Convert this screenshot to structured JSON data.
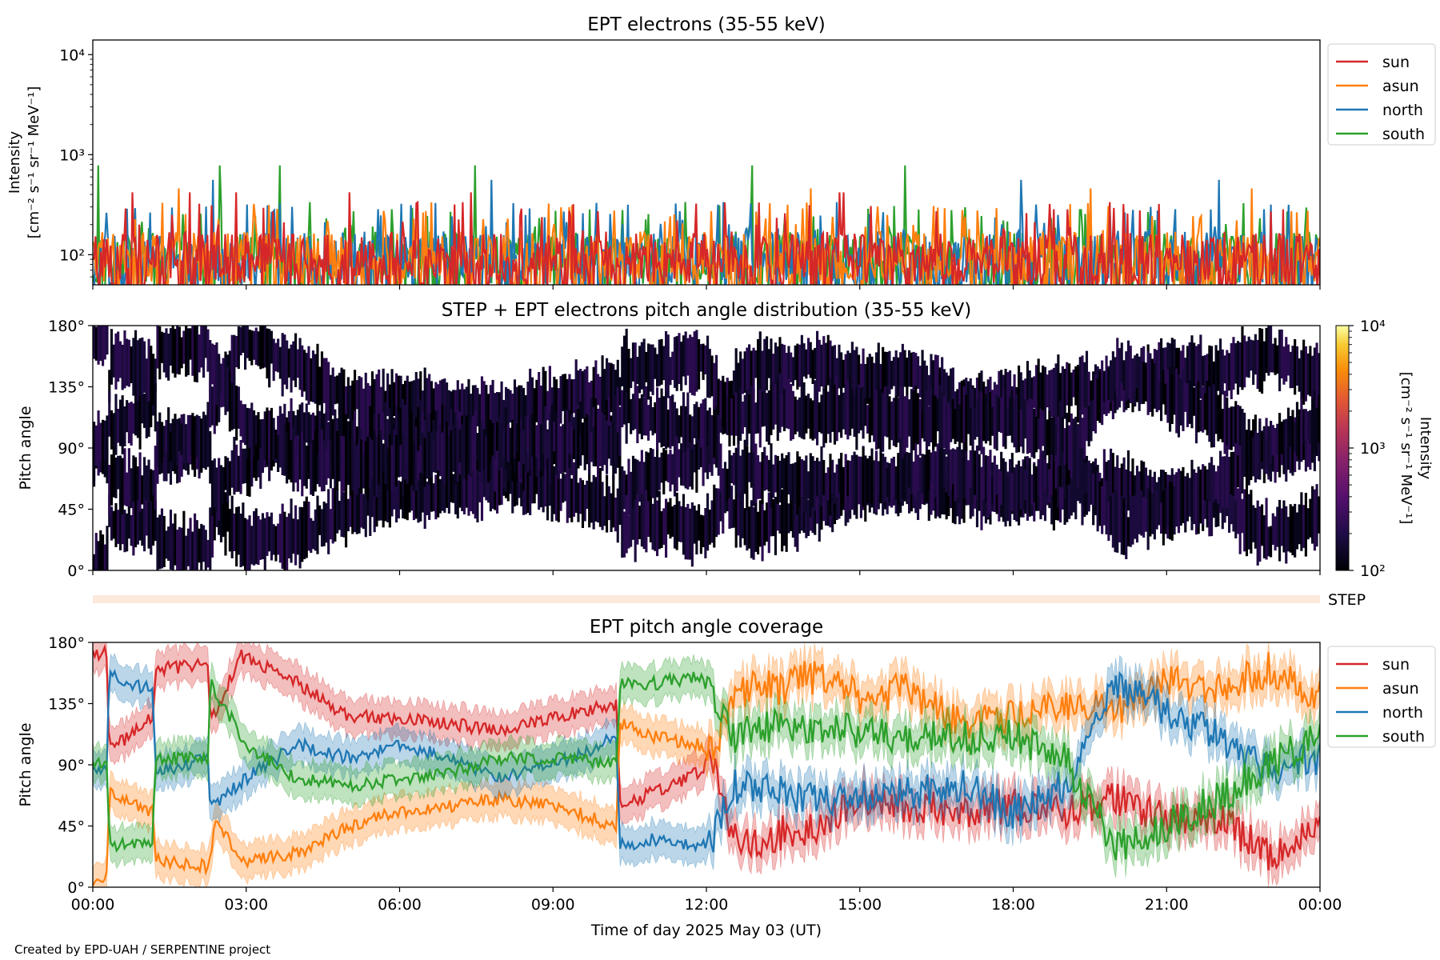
{
  "footer": "Created by EPD-UAH / SERPENTINE project",
  "colors": {
    "sun": "#d62728",
    "asun": "#ff7f0e",
    "north": "#1f77b4",
    "south": "#2ca02c"
  },
  "chart_data": [
    {
      "type": "line",
      "title": "EPT electrons (35-55 keV)",
      "ylabel_line1": "Intensity",
      "ylabel_line2": "[cm⁻² s⁻¹ sr⁻¹ MeV⁻¹]",
      "yscale": "log",
      "ylim": [
        50,
        14000
      ],
      "yticks": [
        {
          "label": "10²",
          "value": 100
        },
        {
          "label": "10³",
          "value": 1000
        },
        {
          "label": "10⁴",
          "value": 10000
        }
      ],
      "xlim_hours": [
        0,
        24
      ],
      "baseline": 75,
      "series": [
        {
          "name": "south",
          "color": "#2ca02c",
          "peak": 780,
          "seed": 4
        },
        {
          "name": "north",
          "color": "#1f77b4",
          "peak": 560,
          "seed": 3
        },
        {
          "name": "asun",
          "color": "#ff7f0e",
          "peak": 460,
          "seed": 2
        },
        {
          "name": "sun",
          "color": "#d62728",
          "peak": 420,
          "seed": 1
        }
      ],
      "legend": [
        "sun",
        "asun",
        "north",
        "south"
      ],
      "legend_position": "outside-right-top"
    },
    {
      "type": "heatmap",
      "title": "STEP + EPT electrons pitch angle distribution (35-55 keV)",
      "ylabel": "Pitch angle",
      "ylim": [
        0,
        180
      ],
      "yticks": [
        "0°",
        "45°",
        "90°",
        "135°",
        "180°"
      ],
      "yticks_values": [
        0,
        45,
        90,
        135,
        180
      ],
      "xlim_hours": [
        0,
        24
      ],
      "colorbar": {
        "scale": "log",
        "range": [
          100,
          10000
        ],
        "colormap": "inferno",
        "ticks": [
          {
            "label": "10²",
            "value": 100
          },
          {
            "label": "10³",
            "value": 1000
          },
          {
            "label": "10⁴",
            "value": 10000
          }
        ],
        "label_line1": "Intensity",
        "label_line2": "[cm⁻² s⁻¹ sr⁻¹ MeV⁻¹]"
      }
    },
    {
      "type": "bar",
      "title": "",
      "label": "STEP",
      "note": "thin STEP coverage strip"
    },
    {
      "type": "line",
      "title": "EPT pitch angle coverage",
      "ylabel": "Pitch angle",
      "xlabel": "Time of day 2025 May 03 (UT)",
      "ylim": [
        0,
        180
      ],
      "yticks": [
        "0°",
        "45°",
        "90°",
        "135°",
        "180°"
      ],
      "yticks_values": [
        0,
        45,
        90,
        135,
        180
      ],
      "xlim_hours": [
        0,
        24
      ],
      "xticks": [
        "00:00",
        "03:00",
        "06:00",
        "09:00",
        "12:00",
        "15:00",
        "18:00",
        "21:00",
        "00:00"
      ],
      "xticks_hours": [
        0,
        3,
        6,
        9,
        12,
        15,
        18,
        21,
        24
      ],
      "series": [
        {
          "name": "sun",
          "color": "#d62728",
          "knots": [
            [
              0,
              170
            ],
            [
              0.28,
              172
            ],
            [
              0.32,
              100
            ],
            [
              1.18,
              125
            ],
            [
              1.22,
              160
            ],
            [
              2.25,
              165
            ],
            [
              2.3,
              120
            ],
            [
              2.9,
              170
            ],
            [
              3.2,
              165
            ],
            [
              4,
              150
            ],
            [
              5,
              125
            ],
            [
              6,
              125
            ],
            [
              7,
              120
            ],
            [
              8,
              115
            ],
            [
              9,
              125
            ],
            [
              10.25,
              135
            ],
            [
              10.3,
              60
            ],
            [
              11,
              70
            ],
            [
              11.9,
              85
            ],
            [
              12.1,
              95
            ],
            [
              12.5,
              40
            ],
            [
              13,
              30
            ],
            [
              13.5,
              40
            ],
            [
              14,
              40
            ],
            [
              15,
              65
            ],
            [
              16,
              60
            ],
            [
              17,
              55
            ],
            [
              18,
              60
            ],
            [
              19,
              55
            ],
            [
              20,
              65
            ],
            [
              21,
              50
            ],
            [
              22,
              50
            ],
            [
              23,
              25
            ],
            [
              24,
              40
            ]
          ]
        },
        {
          "name": "asun",
          "color": "#ff7f0e",
          "knots": [
            [
              0,
              5
            ],
            [
              0.28,
              8
            ],
            [
              0.32,
              70
            ],
            [
              1.18,
              55
            ],
            [
              1.22,
              20
            ],
            [
              2.25,
              15
            ],
            [
              2.4,
              45
            ],
            [
              3,
              20
            ],
            [
              4,
              25
            ],
            [
              5,
              45
            ],
            [
              6,
              55
            ],
            [
              7,
              60
            ],
            [
              8,
              65
            ],
            [
              9,
              60
            ],
            [
              10.25,
              45
            ],
            [
              10.3,
              120
            ],
            [
              11,
              110
            ],
            [
              11.9,
              105
            ],
            [
              12.1,
              100
            ],
            [
              12.5,
              135
            ],
            [
              13,
              150
            ],
            [
              13.5,
              145
            ],
            [
              14,
              155
            ],
            [
              15,
              140
            ],
            [
              16,
              145
            ],
            [
              17,
              120
            ],
            [
              18,
              125
            ],
            [
              19,
              135
            ],
            [
              20,
              130
            ],
            [
              21,
              150
            ],
            [
              22,
              145
            ],
            [
              23,
              160
            ],
            [
              24,
              140
            ]
          ]
        },
        {
          "name": "north",
          "color": "#1f77b4",
          "knots": [
            [
              0,
              90
            ],
            [
              0.28,
              85
            ],
            [
              0.32,
              155
            ],
            [
              1.18,
              145
            ],
            [
              1.22,
              85
            ],
            [
              2.25,
              95
            ],
            [
              2.3,
              60
            ],
            [
              3,
              80
            ],
            [
              4,
              105
            ],
            [
              5,
              95
            ],
            [
              6,
              105
            ],
            [
              7,
              95
            ],
            [
              8,
              80
            ],
            [
              9,
              90
            ],
            [
              10.25,
              110
            ],
            [
              10.3,
              30
            ],
            [
              11,
              35
            ],
            [
              11.9,
              30
            ],
            [
              12.1,
              35
            ],
            [
              12.5,
              75
            ],
            [
              13,
              70
            ],
            [
              13.5,
              70
            ],
            [
              14,
              65
            ],
            [
              15,
              65
            ],
            [
              16,
              70
            ],
            [
              17,
              75
            ],
            [
              18,
              55
            ],
            [
              19,
              75
            ],
            [
              20,
              150
            ],
            [
              21,
              130
            ],
            [
              22,
              110
            ],
            [
              23,
              85
            ],
            [
              24,
              95
            ]
          ]
        },
        {
          "name": "south",
          "color": "#2ca02c",
          "knots": [
            [
              0,
              90
            ],
            [
              0.28,
              95
            ],
            [
              0.32,
              30
            ],
            [
              1.18,
              35
            ],
            [
              1.22,
              95
            ],
            [
              2.25,
              95
            ],
            [
              2.3,
              150
            ],
            [
              3,
              105
            ],
            [
              4,
              80
            ],
            [
              5,
              75
            ],
            [
              6,
              80
            ],
            [
              7,
              85
            ],
            [
              8,
              95
            ],
            [
              9,
              95
            ],
            [
              10.25,
              90
            ],
            [
              10.3,
              150
            ],
            [
              11,
              150
            ],
            [
              11.9,
              155
            ],
            [
              12.1,
              140
            ],
            [
              12.5,
              110
            ],
            [
              13,
              115
            ],
            [
              13.5,
              120
            ],
            [
              14,
              115
            ],
            [
              15,
              115
            ],
            [
              16,
              110
            ],
            [
              17,
              110
            ],
            [
              18,
              110
            ],
            [
              19,
              95
            ],
            [
              20,
              30
            ],
            [
              21,
              45
            ],
            [
              22,
              65
            ],
            [
              23,
              90
            ],
            [
              24,
              110
            ]
          ]
        }
      ],
      "legend": [
        "sun",
        "asun",
        "north",
        "south"
      ],
      "legend_position": "outside-right-top"
    }
  ]
}
